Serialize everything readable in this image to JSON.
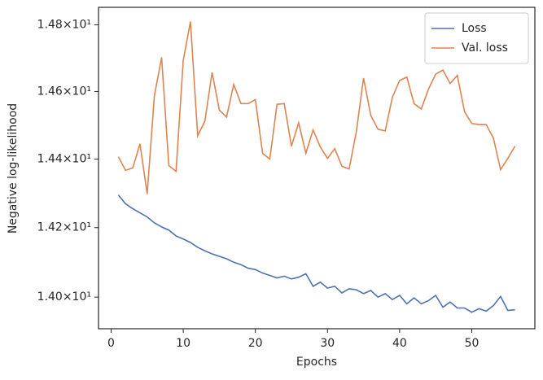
{
  "chart_data": {
    "type": "line",
    "x_label": "Epochs",
    "y_label": "Negative log-likelihood",
    "x": [
      1,
      2,
      3,
      4,
      5,
      6,
      7,
      8,
      9,
      10,
      11,
      12,
      13,
      14,
      15,
      16,
      17,
      18,
      19,
      20,
      21,
      22,
      23,
      24,
      25,
      26,
      27,
      28,
      29,
      30,
      31,
      32,
      33,
      34,
      35,
      36,
      37,
      38,
      39,
      40,
      41,
      42,
      43,
      44,
      45,
      46,
      47,
      48,
      49,
      50,
      51,
      52,
      53,
      54,
      55,
      56
    ],
    "series": [
      {
        "name": "Loss",
        "color": "#4c72b0",
        "values": [
          14.295,
          14.269,
          14.255,
          14.243,
          14.231,
          14.214,
          14.202,
          14.193,
          14.176,
          14.167,
          14.157,
          14.143,
          14.133,
          14.124,
          14.117,
          14.11,
          14.1,
          14.093,
          14.083,
          14.079,
          14.069,
          14.062,
          14.055,
          14.06,
          14.052,
          14.057,
          14.067,
          14.031,
          14.043,
          14.026,
          14.031,
          14.012,
          14.024,
          14.021,
          14.01,
          14.019,
          14.0,
          14.01,
          13.993,
          14.005,
          13.981,
          13.998,
          13.981,
          13.99,
          14.005,
          13.971,
          13.986,
          13.969,
          13.969,
          13.957,
          13.967,
          13.96,
          13.976,
          14.002,
          13.962,
          13.964
        ]
      },
      {
        "name": "Val. loss",
        "color": "#dd8452",
        "values": [
          14.407,
          14.367,
          14.374,
          14.445,
          14.298,
          14.588,
          14.702,
          14.381,
          14.364,
          14.693,
          14.81,
          14.469,
          14.512,
          14.657,
          14.545,
          14.524,
          14.621,
          14.564,
          14.564,
          14.576,
          14.417,
          14.4,
          14.562,
          14.564,
          14.438,
          14.507,
          14.417,
          14.486,
          14.436,
          14.402,
          14.431,
          14.379,
          14.371,
          14.481,
          14.64,
          14.529,
          14.488,
          14.483,
          14.583,
          14.633,
          14.643,
          14.564,
          14.548,
          14.607,
          14.652,
          14.664,
          14.624,
          14.648,
          14.54,
          14.505,
          14.502,
          14.502,
          14.462,
          14.369,
          14.402,
          14.438
        ]
      }
    ],
    "xlim": [
      -1.75,
      58.75
    ],
    "xticks": [
      0,
      10,
      20,
      30,
      40,
      50
    ],
    "ylim": [
      13.91,
      14.853
    ],
    "log_y": true,
    "yticks": [
      {
        "value": 14.0,
        "label": "1.40×10¹"
      },
      {
        "value": 14.2,
        "label": "1.42×10¹"
      },
      {
        "value": 14.4,
        "label": "1.44×10¹"
      },
      {
        "value": 14.6,
        "label": "1.46×10¹"
      },
      {
        "value": 14.8,
        "label": "1.48×10¹"
      }
    ],
    "legend": "upper right",
    "grid": false
  }
}
